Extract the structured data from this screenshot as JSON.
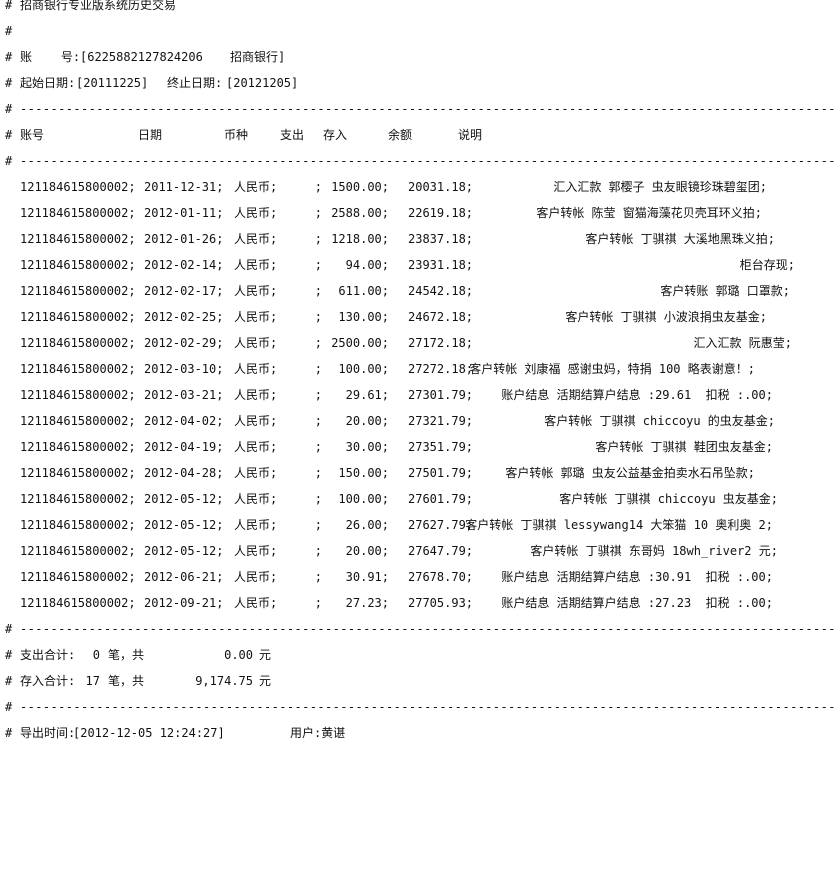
{
  "title": "招商银行专业版系统历史交易",
  "hash": "#",
  "dashes": "------------------------------------------------------------------------------------------------------------------------------",
  "account": {
    "label": "账    号:",
    "value": "[6225882127824206",
    "bank": "招商银行]"
  },
  "period": {
    "start_label": "起始日期:",
    "start": "[20111225]",
    "end_label": "终止日期:",
    "end": "[20121205]"
  },
  "columns": [
    "账号",
    "日期",
    "币种",
    "支出",
    "存入",
    "余额",
    "说明"
  ],
  "rows": [
    {
      "account": "121184615800002;",
      "date": "2011-12-31;",
      "currency": "人民币;",
      "expense": ";",
      "deposit": "1500.00;",
      "balance": "20031.18;",
      "desc": "汇入汇款 郭樱子 虫友眼镜珍珠碧玺团;"
    },
    {
      "account": "121184615800002;",
      "date": "2012-01-11;",
      "currency": "人民币;",
      "expense": ";",
      "deposit": "2588.00;",
      "balance": "22619.18;",
      "desc": "客户转帐 陈莹 窗猫海藻花贝壳耳环义拍;"
    },
    {
      "account": "121184615800002;",
      "date": "2012-01-26;",
      "currency": "人民币;",
      "expense": ";",
      "deposit": "1218.00;",
      "balance": "23837.18;",
      "desc": "客户转帐 丁骐祺 大溪地黑珠义拍;"
    },
    {
      "account": "121184615800002;",
      "date": "2012-02-14;",
      "currency": "人民币;",
      "expense": ";",
      "deposit": "94.00;",
      "balance": "23931.18;",
      "desc": "柜台存现;"
    },
    {
      "account": "121184615800002;",
      "date": "2012-02-17;",
      "currency": "人民币;",
      "expense": ";",
      "deposit": "611.00;",
      "balance": "24542.18;",
      "desc": "客户转账 郭璐 口罩款;"
    },
    {
      "account": "121184615800002;",
      "date": "2012-02-25;",
      "currency": "人民币;",
      "expense": ";",
      "deposit": "130.00;",
      "balance": "24672.18;",
      "desc": "客户转帐 丁骐祺 小波浪捐虫友基金;"
    },
    {
      "account": "121184615800002;",
      "date": "2012-02-29;",
      "currency": "人民币;",
      "expense": ";",
      "deposit": "2500.00;",
      "balance": "27172.18;",
      "desc": "汇入汇款 阮惠莹;"
    },
    {
      "account": "121184615800002;",
      "date": "2012-03-10;",
      "currency": "人民币;",
      "expense": ";",
      "deposit": "100.00;",
      "balance": "27272.18;",
      "desc": "客户转帐 刘康福 感谢虫妈，特捐 100 略表谢意！;"
    },
    {
      "account": "121184615800002;",
      "date": "2012-03-21;",
      "currency": "人民币;",
      "expense": ";",
      "deposit": "29.61;",
      "balance": "27301.79;",
      "desc": "账户结息 活期结算户结息 :29.61  扣税 :.00;"
    },
    {
      "account": "121184615800002;",
      "date": "2012-04-02;",
      "currency": "人民币;",
      "expense": ";",
      "deposit": "20.00;",
      "balance": "27321.79;",
      "desc": "客户转帐 丁骐祺 chiccoyu 的虫友基金;"
    },
    {
      "account": "121184615800002;",
      "date": "2012-04-19;",
      "currency": "人民币;",
      "expense": ";",
      "deposit": "30.00;",
      "balance": "27351.79;",
      "desc": "客户转帐 丁骐祺 鞋团虫友基金;"
    },
    {
      "account": "121184615800002;",
      "date": "2012-04-28;",
      "currency": "人民币;",
      "expense": ";",
      "deposit": "150.00;",
      "balance": "27501.79;",
      "desc": "客户转帐 郭璐 虫友公益基金拍卖水石吊坠款;"
    },
    {
      "account": "121184615800002;",
      "date": "2012-05-12;",
      "currency": "人民币;",
      "expense": ";",
      "deposit": "100.00;",
      "balance": "27601.79;",
      "desc": "客户转帐 丁骐祺 chiccoyu 虫友基金;"
    },
    {
      "account": "121184615800002;",
      "date": "2012-05-12;",
      "currency": "人民币;",
      "expense": ";",
      "deposit": "26.00;",
      "balance": "27627.79;",
      "desc": "客户转帐 丁骐祺 lessywang14 大笨猫 10 奥利奥 2;"
    },
    {
      "account": "121184615800002;",
      "date": "2012-05-12;",
      "currency": "人民币;",
      "expense": ";",
      "deposit": "20.00;",
      "balance": "27647.79;",
      "desc": "客户转帐 丁骐祺 东哥妈 18wh_river2 元;"
    },
    {
      "account": "121184615800002;",
      "date": "2012-06-21;",
      "currency": "人民币;",
      "expense": ";",
      "deposit": "30.91;",
      "balance": "27678.70;",
      "desc": "账户结息 活期结算户结息 :30.91  扣税 :.00;"
    },
    {
      "account": "121184615800002;",
      "date": "2012-09-21;",
      "currency": "人民币;",
      "expense": ";",
      "deposit": "27.23;",
      "balance": "27705.93;",
      "desc": "账户结息 活期结算户结息 :27.23  扣税 :.00;"
    }
  ],
  "totals": {
    "expense_label": "支出合计:",
    "expense_count": "0",
    "count_unit": "笔，共",
    "expense_amount": "0.00",
    "currency_unit": "元",
    "deposit_label": "存入合计:",
    "deposit_count": "17",
    "deposit_amount": "9,174.75"
  },
  "footer": {
    "export_label": "导出时间:",
    "export_time": "[2012-12-05 12:24:27]",
    "user": "用户:黄谌"
  }
}
